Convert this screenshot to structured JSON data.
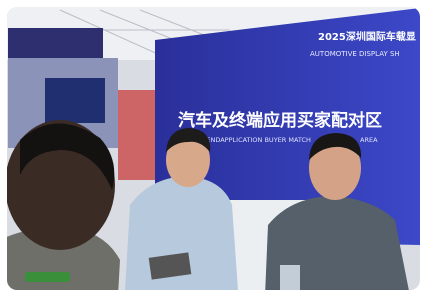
{
  "scene": {
    "header_line1": "2025深圳国际车载显",
    "header_line2": "AUTOMOTIVE DISPLAY SH",
    "banner_title": "汽车及终端应用买家配对区",
    "banner_subtitle": "AND ENDAPPLICATION BUYER MATCH",
    "banner_subtitle_end": "AREA"
  }
}
